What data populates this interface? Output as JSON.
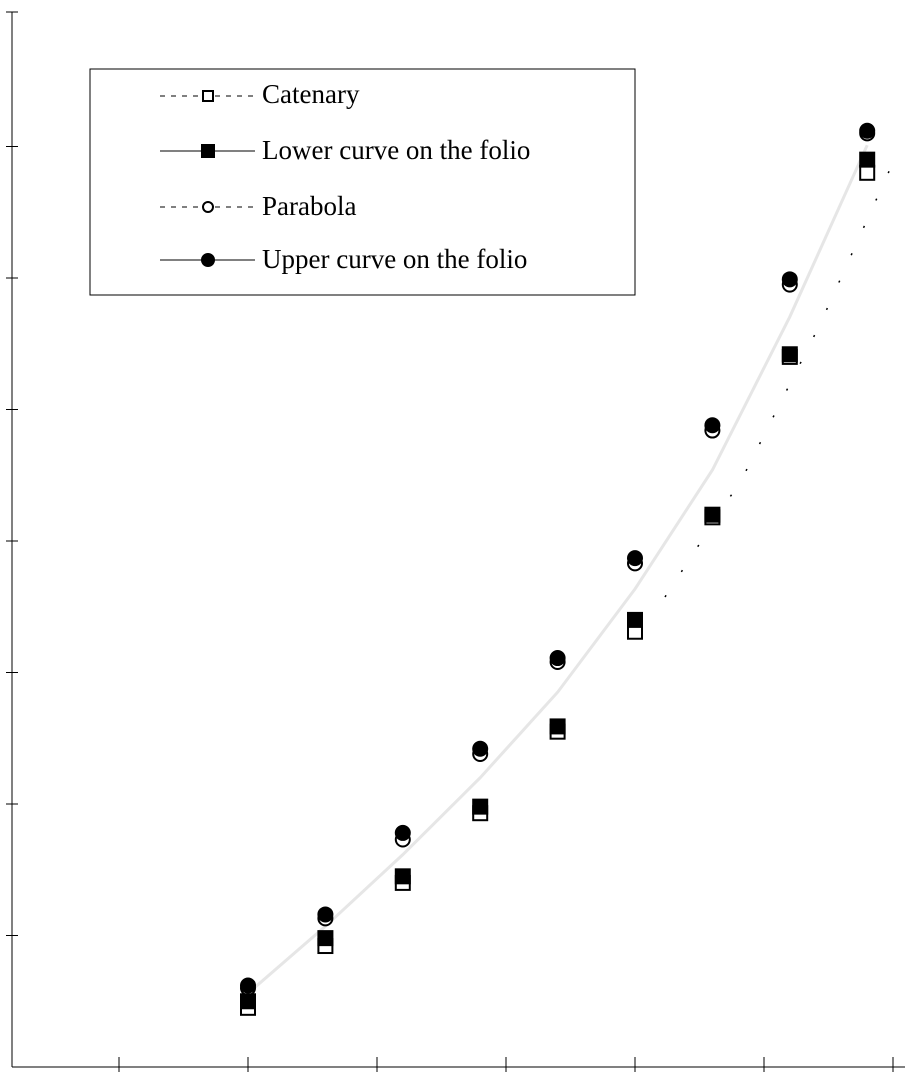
{
  "chart_data": {
    "type": "scatter",
    "title": "",
    "xlabel": "",
    "ylabel": "",
    "xlim": [
      -1.8,
      5.3
    ],
    "ylim": [
      0,
      8.1
    ],
    "x_ticks": [
      -1,
      0,
      1,
      2,
      3,
      4,
      5
    ],
    "y_ticks": [
      1,
      2,
      3,
      4,
      5,
      6,
      7
    ],
    "grid": false,
    "legend_position": "top-left",
    "series": [
      {
        "name": "Catenary",
        "marker": "square-open",
        "line": "dashed",
        "x": [
          0.0,
          0.6,
          1.2,
          1.8,
          2.4,
          3.0,
          3.6,
          4.2,
          4.8
        ],
        "y": [
          0.45,
          0.92,
          1.4,
          1.93,
          2.55,
          3.31,
          4.18,
          5.4,
          6.8
        ]
      },
      {
        "name": "Lower curve on the folio",
        "marker": "square-filled",
        "line": "solid",
        "x": [
          0.0,
          0.6,
          1.2,
          1.8,
          2.4,
          3.0,
          3.6,
          4.2,
          4.8
        ],
        "y": [
          0.5,
          0.98,
          1.45,
          1.98,
          2.59,
          3.4,
          4.2,
          5.42,
          6.9
        ]
      },
      {
        "name": "Parabola",
        "marker": "circle-open",
        "line": "dashed",
        "x": [
          0.0,
          0.6,
          1.2,
          1.8,
          2.4,
          3.0,
          3.6,
          4.2,
          4.8
        ],
        "y": [
          0.6,
          1.13,
          1.73,
          2.38,
          3.08,
          3.83,
          4.84,
          5.95,
          7.1
        ]
      },
      {
        "name": "Upper curve on the folio",
        "marker": "circle-filled",
        "line": "solid",
        "x": [
          0.0,
          0.6,
          1.2,
          1.8,
          2.4,
          3.0,
          3.6,
          4.2,
          4.8
        ],
        "y": [
          0.62,
          1.16,
          1.78,
          2.42,
          3.11,
          3.87,
          4.88,
          5.99,
          7.12
        ]
      }
    ]
  },
  "legend": {
    "items": [
      "Catenary",
      "Lower curve on the folio",
      "Parabola",
      "Upper curve on the folio"
    ]
  }
}
